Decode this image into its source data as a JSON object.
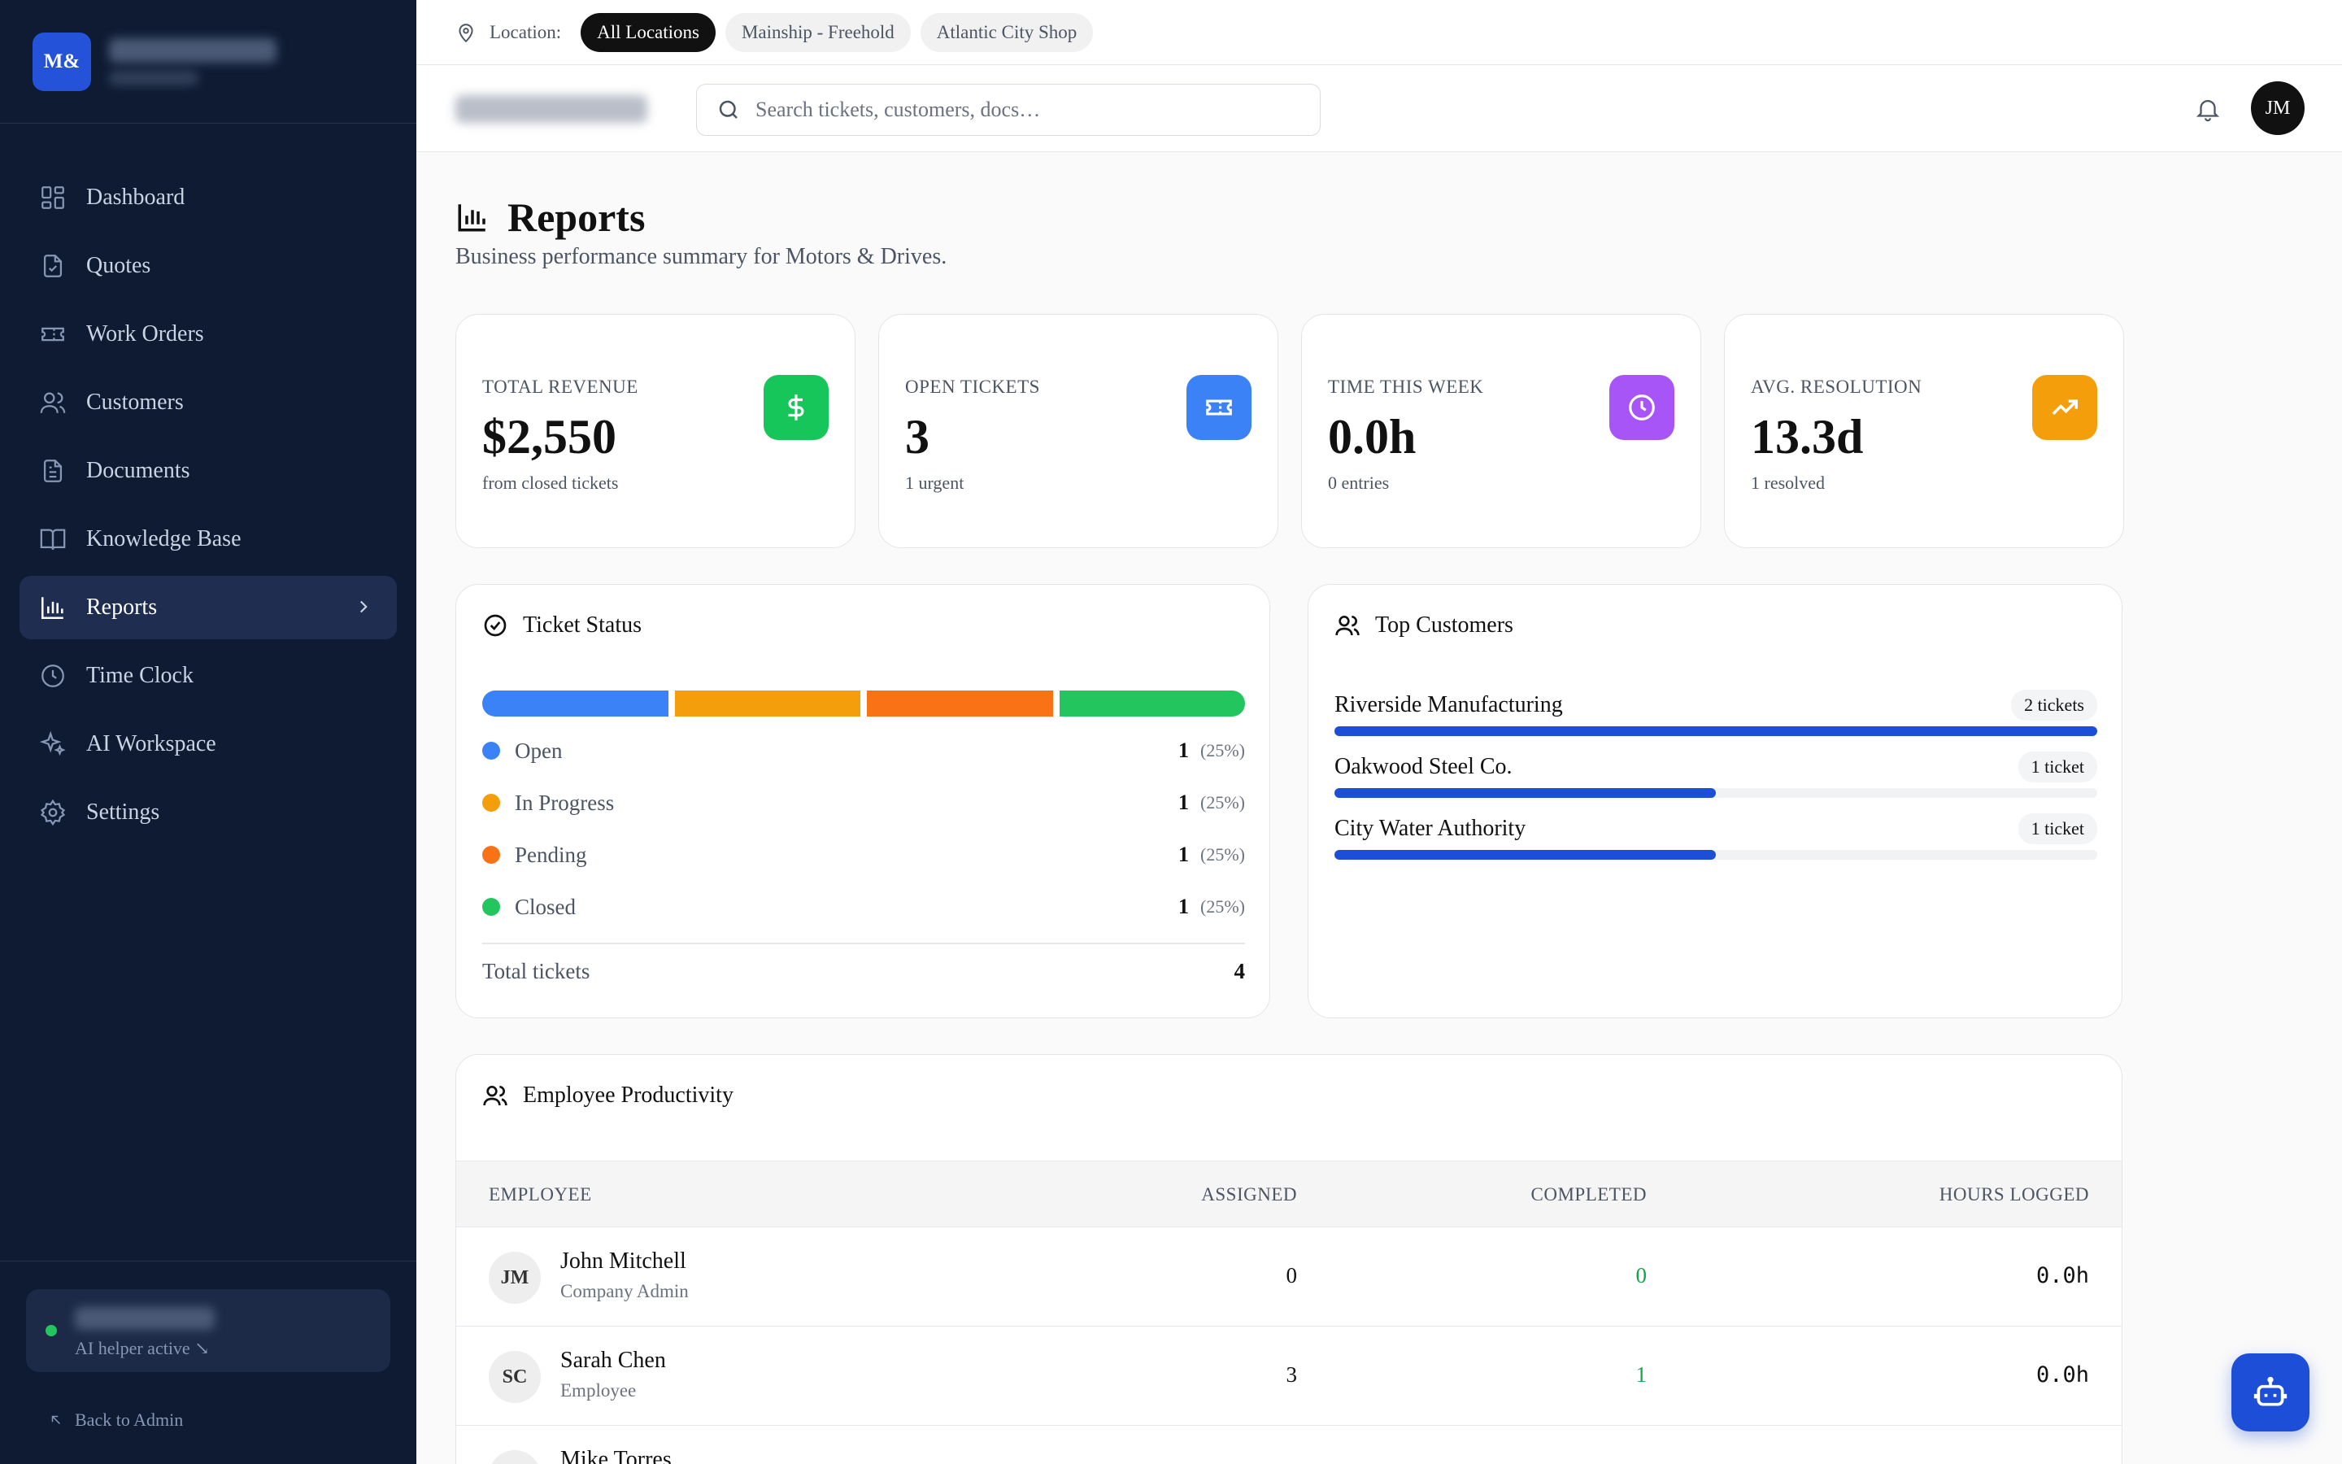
{
  "app": {
    "logo_text": "M&",
    "ai_status": "AI helper active ↘",
    "back_label": "Back to Admin"
  },
  "sidebar": {
    "items": [
      {
        "label": "Dashboard",
        "icon": "dashboard-icon"
      },
      {
        "label": "Quotes",
        "icon": "quote-document-icon"
      },
      {
        "label": "Work Orders",
        "icon": "ticket-icon"
      },
      {
        "label": "Customers",
        "icon": "users-icon"
      },
      {
        "label": "Documents",
        "icon": "document-icon"
      },
      {
        "label": "Knowledge Base",
        "icon": "book-icon"
      },
      {
        "label": "Reports",
        "icon": "bar-chart-icon",
        "active": true
      },
      {
        "label": "Time Clock",
        "icon": "clock-icon"
      },
      {
        "label": "AI Workspace",
        "icon": "sparkles-icon"
      },
      {
        "label": "Settings",
        "icon": "gear-icon"
      }
    ]
  },
  "location": {
    "label": "Location:",
    "options": [
      "All Locations",
      "Mainship - Freehold",
      "Atlantic City Shop"
    ],
    "selected": "All Locations"
  },
  "header": {
    "search_placeholder": "Search tickets, customers, docs…",
    "avatar_initials": "JM"
  },
  "page": {
    "title": "Reports",
    "subtitle": "Business performance summary for Motors & Drives."
  },
  "stats": [
    {
      "label": "TOTAL REVENUE",
      "value": "$2,550",
      "sub": "from closed tickets",
      "color": "#16c65a",
      "icon": "dollar-icon"
    },
    {
      "label": "OPEN TICKETS",
      "value": "3",
      "sub": "1 urgent",
      "color": "#3b82f6",
      "icon": "ticket-icon"
    },
    {
      "label": "TIME THIS WEEK",
      "value": "0.0h",
      "sub": "0 entries",
      "color": "#a855f7",
      "icon": "clock-icon"
    },
    {
      "label": "AVG. RESOLUTION",
      "value": "13.3d",
      "sub": "1 resolved",
      "color": "#f59e0b",
      "icon": "trending-up-icon"
    }
  ],
  "ticket_status": {
    "title": "Ticket Status",
    "rows": [
      {
        "name": "Open",
        "count": "1",
        "pct": "(25%)",
        "color": "#3b82f6"
      },
      {
        "name": "In Progress",
        "count": "1",
        "pct": "(25%)",
        "color": "#f59e0b"
      },
      {
        "name": "Pending",
        "count": "1",
        "pct": "(25%)",
        "color": "#f97316"
      },
      {
        "name": "Closed",
        "count": "1",
        "pct": "(25%)",
        "color": "#22c55e"
      }
    ],
    "total_label": "Total tickets",
    "total_value": "4"
  },
  "top_customers": {
    "title": "Top Customers",
    "rows": [
      {
        "name": "Riverside Manufacturing",
        "badge": "2 tickets",
        "fraction": 1.0
      },
      {
        "name": "Oakwood Steel Co.",
        "badge": "1 ticket",
        "fraction": 0.5
      },
      {
        "name": "City Water Authority",
        "badge": "1 ticket",
        "fraction": 0.5
      }
    ]
  },
  "productivity": {
    "title": "Employee Productivity",
    "columns": [
      "EMPLOYEE",
      "ASSIGNED",
      "COMPLETED",
      "HOURS LOGGED"
    ],
    "rows": [
      {
        "initials": "JM",
        "name": "John Mitchell",
        "role": "Company Admin",
        "assigned": "0",
        "completed": "0",
        "hours": "0.0h"
      },
      {
        "initials": "SC",
        "name": "Sarah Chen",
        "role": "Employee",
        "assigned": "3",
        "completed": "1",
        "hours": "0.0h"
      },
      {
        "initials": "",
        "name": "Mike Torres",
        "role": "",
        "assigned": "",
        "completed": "",
        "hours": ""
      }
    ]
  }
}
